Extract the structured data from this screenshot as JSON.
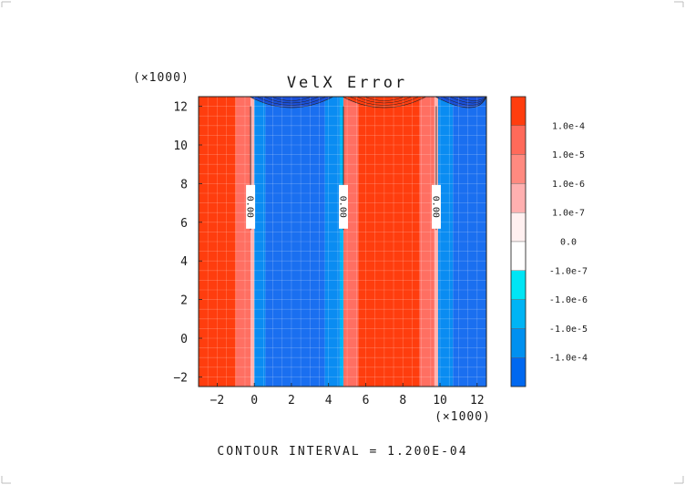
{
  "chart_data": {
    "type": "heatmap",
    "title": "VelX Error",
    "x_multiplier_label": "(×1000)",
    "y_multiplier_label": "(×1000)",
    "xlim": [
      -3,
      12.5
    ],
    "ylim": [
      -2.5,
      12.5
    ],
    "x_ticks": [
      -2,
      0,
      2,
      4,
      6,
      8,
      10,
      12
    ],
    "y_ticks": [
      -2,
      0,
      2,
      4,
      6,
      8,
      10,
      12
    ],
    "grid": true,
    "footer": "CONTOUR INTERVAL = 1.200E-04",
    "colorbar": {
      "colors": [
        "#ff3d0e",
        "#ff6a5a",
        "#ff8a80",
        "#ffb0b0",
        "#fff0f0",
        "#ffffff",
        "#00e5f5",
        "#00b4f5",
        "#0090f0",
        "#0068f0",
        "#0058e8"
      ],
      "labels": [
        "1.0e-4",
        "1.0e-5",
        "1.0e-6",
        "1.0e-7",
        "0.0",
        "-1.0e-7",
        "-1.0e-6",
        "-1.0e-5",
        "-1.0e-4"
      ]
    },
    "bands": [
      {
        "x0": -3.0,
        "x1": -1.0,
        "level": 1.0
      },
      {
        "x0": -1.0,
        "x1": -0.2,
        "level": 0.6
      },
      {
        "x0": -0.2,
        "x1": 0.0,
        "level": 0.2
      },
      {
        "x0": 0.0,
        "x1": 0.6,
        "level": -0.6
      },
      {
        "x0": 0.6,
        "x1": 3.8,
        "level": -1.0
      },
      {
        "x0": 3.8,
        "x1": 4.6,
        "level": -0.6
      },
      {
        "x0": 4.6,
        "x1": 4.8,
        "level": -0.2
      },
      {
        "x0": 4.8,
        "x1": 5.6,
        "level": 0.6
      },
      {
        "x0": 5.6,
        "x1": 8.9,
        "level": 1.0
      },
      {
        "x0": 8.9,
        "x1": 9.7,
        "level": 0.6
      },
      {
        "x0": 9.7,
        "x1": 9.9,
        "level": 0.2
      },
      {
        "x0": 9.9,
        "x1": 10.7,
        "level": -0.6
      },
      {
        "x0": 10.7,
        "x1": 12.5,
        "level": -1.0
      }
    ],
    "zero_contours": [
      {
        "x": -0.2,
        "y0": 5.6,
        "y1": 12.0,
        "label": "0.00",
        "label_y": 6.8
      },
      {
        "x": 4.8,
        "y0": 5.6,
        "y1": 12.0,
        "label": "0.00",
        "label_y": 6.8
      },
      {
        "x": 9.8,
        "y0": 5.6,
        "y1": 12.0,
        "label": "0.00",
        "label_y": 6.8
      }
    ],
    "top_blobs": [
      {
        "cx": 2.0,
        "level": -1.0
      },
      {
        "cx": 7.0,
        "level": 1.0
      },
      {
        "cx": 12.0,
        "level": -1.0
      }
    ]
  }
}
